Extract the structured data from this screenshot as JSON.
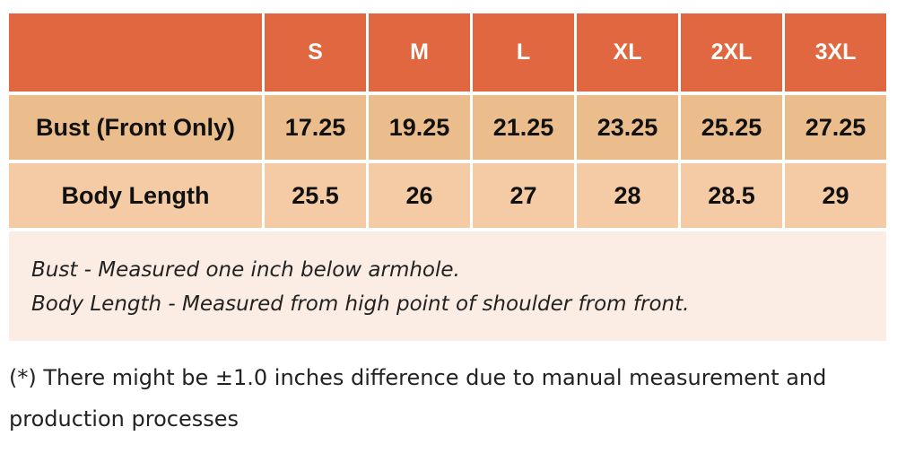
{
  "table": {
    "header": [
      "S",
      "M",
      "L",
      "XL",
      "2XL",
      "3XL"
    ],
    "rows": [
      {
        "label": "Bust (Front Only)",
        "cells": [
          "17.25",
          "19.25",
          "21.25",
          "23.25",
          "25.25",
          "27.25"
        ]
      },
      {
        "label": "Body Length",
        "cells": [
          "25.5",
          "26",
          "27",
          "28",
          "28.5",
          "29"
        ]
      }
    ]
  },
  "notes": [
    "Bust - Measured one inch below armhole.",
    "Body Length - Measured from high point of shoulder from front."
  ],
  "footnote": "(*) There might be ±1.0 inches difference due to manual measurement and production processes"
}
